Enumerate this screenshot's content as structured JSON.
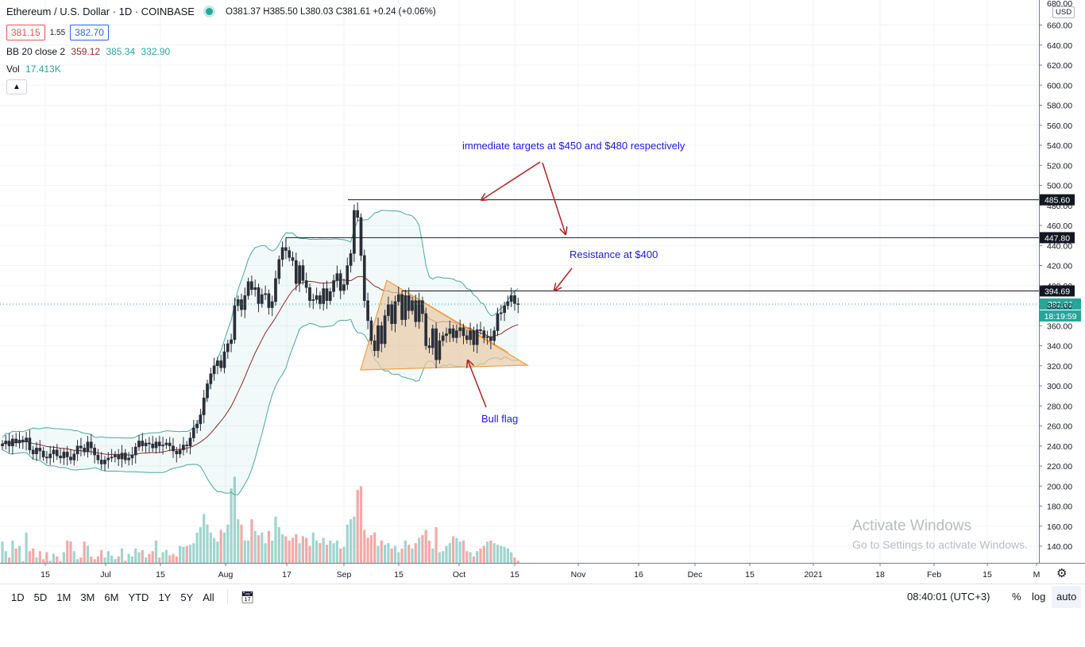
{
  "header": {
    "title": "Ethereum / U.S. Dollar · 1D · COINBASE",
    "ohlc": "O381.37 H385.50 L380.03 C381.61 +0.24 (+0.06%)",
    "sell_price": "381.15",
    "spread": "1.55",
    "buy_price": "382.70",
    "bb_label": "BB 20 close 2",
    "bb_basis": "359.12",
    "bb_upper": "385.34",
    "bb_lower": "332.90",
    "vol_label": "Vol",
    "vol_value": "17.413K",
    "collapse_icon": "chevron-up-icon"
  },
  "currency": "USD",
  "price_labels": {
    "top": "680.00",
    "line_485": "485.60",
    "line_447": "447.80",
    "line_394": "394.69",
    "current": "381.61",
    "countdown": "18:19:59"
  },
  "annotations": {
    "targets": "immediate targets at $450 and $480 respectively",
    "resistance": "Resistance at $400",
    "bull_flag": "Bull flag"
  },
  "watermark": {
    "line1": "Activate Windows",
    "line2": "Go to Settings to activate Windows."
  },
  "toolbar": {
    "timeframes": [
      "1D",
      "5D",
      "1M",
      "3M",
      "6M",
      "YTD",
      "1Y",
      "5Y",
      "All"
    ],
    "time": "08:40:01 (UTC+3)",
    "percent": "%",
    "log": "log",
    "auto": "auto"
  },
  "colors": {
    "up": "#26a69a",
    "down": "#ef5350",
    "vol_up": "#9fd5cf",
    "vol_down": "#f4a9a7",
    "bb_band": "#4aa7a0",
    "bb_basis": "#8d2a2a",
    "flag_fill": "#e9c9a6",
    "flag_stroke": "#f39c3c",
    "annotation_text": "#1a1ae6",
    "arrow": "#b22222"
  },
  "chart_data": {
    "type": "candlestick",
    "symbol": "Ethereum / U.S. Dollar",
    "interval": "1D",
    "exchange": "COINBASE",
    "ylim": [
      130,
      690
    ],
    "y_ticks": [
      140,
      160,
      180,
      200,
      220,
      240,
      260,
      280,
      300,
      320,
      340,
      360,
      380,
      400,
      420,
      440,
      460,
      480,
      500,
      520,
      540,
      560,
      580,
      600,
      620,
      640,
      660
    ],
    "x_ticks": [
      "15",
      "Jul",
      "15",
      "Aug",
      "17",
      "Sep",
      "15",
      "Oct",
      "15",
      "Nov",
      "16",
      "Dec",
      "15",
      "2021",
      "18",
      "Feb",
      "15",
      "M"
    ],
    "price_lines": [
      485.6,
      447.8,
      394.69
    ],
    "closes": [
      242,
      245,
      240,
      247,
      243,
      246,
      244,
      248,
      236,
      232,
      238,
      235,
      229,
      228,
      232,
      236,
      230,
      228,
      234,
      229,
      226,
      232,
      240,
      238,
      234,
      244,
      238,
      231,
      226,
      222,
      226,
      228,
      229,
      231,
      227,
      233,
      226,
      228,
      231,
      239,
      245,
      240,
      243,
      242,
      238,
      244,
      240,
      241,
      243,
      240,
      235,
      232,
      236,
      241,
      240,
      248,
      258,
      262,
      271,
      288,
      302,
      312,
      320,
      325,
      318,
      334,
      342,
      346,
      380,
      386,
      376,
      390,
      404,
      396,
      398,
      382,
      391,
      392,
      378,
      384,
      407,
      426,
      438,
      435,
      428,
      425,
      402,
      420,
      405,
      398,
      385,
      386,
      390,
      382,
      397,
      385,
      394,
      405,
      412,
      395,
      401,
      420,
      432,
      475,
      468,
      430,
      385,
      365,
      345,
      335,
      360,
      342,
      370,
      381,
      362,
      384,
      391,
      366,
      390,
      375,
      385,
      364,
      385,
      372,
      340,
      338,
      357,
      326,
      345,
      350,
      352,
      357,
      348,
      355,
      358,
      350,
      346,
      355,
      341,
      356,
      355,
      348,
      349,
      345,
      355,
      372,
      373,
      380,
      384,
      390,
      382,
      381
    ],
    "bollinger": {
      "period": 20,
      "multiplier": 2,
      "basis_last": 359.12,
      "upper_last": 385.34,
      "lower_last": 332.9
    },
    "volume": [
      158,
      140,
      128,
      160,
      145,
      150,
      120,
      175,
      140,
      145,
      128,
      140,
      125,
      138,
      122,
      135,
      130,
      118,
      138,
      160,
      158,
      140,
      125,
      128,
      158,
      150,
      130,
      125,
      130,
      142,
      128,
      140,
      132,
      125,
      130,
      145,
      122,
      135,
      130,
      145,
      138,
      142,
      128,
      135,
      140,
      160,
      128,
      138,
      142,
      132,
      135,
      130,
      150,
      148,
      150,
      152,
      155,
      175,
      185,
      210,
      190,
      175,
      165,
      158,
      180,
      175,
      190,
      258,
      280,
      200,
      190,
      160,
      160,
      200,
      178,
      170,
      175,
      155,
      178,
      160,
      205,
      185,
      172,
      168,
      160,
      165,
      172,
      155,
      168,
      165,
      150,
      175,
      160,
      155,
      165,
      152,
      160,
      155,
      160,
      145,
      148,
      190,
      200,
      205,
      255,
      262,
      180,
      165,
      170,
      175,
      150,
      160,
      152,
      155,
      145,
      150,
      138,
      145,
      160,
      152,
      145,
      155,
      165,
      170,
      180,
      160,
      145,
      185,
      138,
      140,
      150,
      155,
      168,
      165,
      158,
      160,
      140,
      138,
      130,
      140,
      145,
      150,
      158,
      160,
      155,
      152,
      150,
      148,
      145,
      138,
      128,
      122
    ]
  }
}
